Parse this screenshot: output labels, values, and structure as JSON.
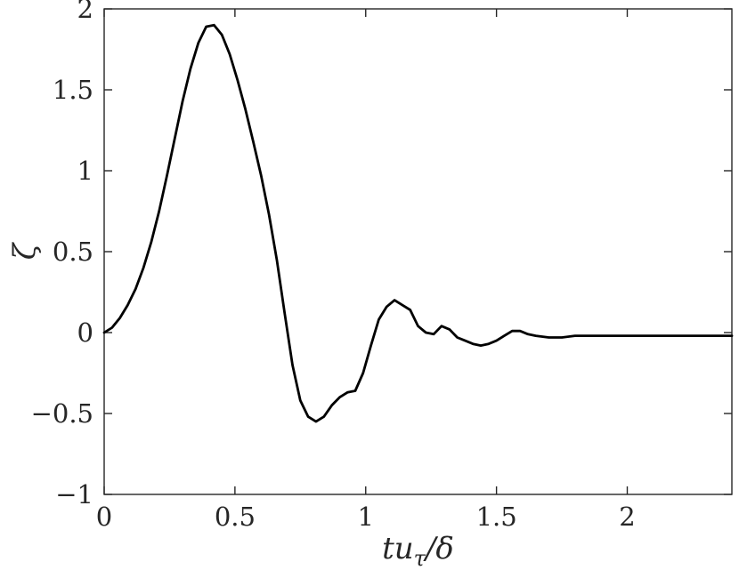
{
  "figure": {
    "background": "#ffffff"
  },
  "chart_data": {
    "type": "line",
    "title": "",
    "xlabel": "tu_τ/δ",
    "xlabel_parts": {
      "pre": "tu",
      "sub": "τ",
      "post": "/δ"
    },
    "ylabel": "ζ",
    "xlim": [
      0,
      2.4
    ],
    "ylim": [
      -1,
      2
    ],
    "xticks": [
      0,
      0.5,
      1,
      1.5,
      2
    ],
    "xtick_labels": [
      "0",
      "0.5",
      "1",
      "1.5",
      "2"
    ],
    "yticks": [
      -1,
      -0.5,
      0,
      0.5,
      1,
      1.5,
      2
    ],
    "ytick_labels": [
      "−1",
      "−0.5",
      "0",
      "0.5",
      "1",
      "1.5",
      "2"
    ],
    "grid": false,
    "legend_position": "none",
    "axis_color": "#262626",
    "line_color": "#000000",
    "line_width": 2.8,
    "series": [
      {
        "name": "ζ",
        "x": [
          0.0,
          0.03,
          0.06,
          0.09,
          0.12,
          0.15,
          0.18,
          0.21,
          0.24,
          0.27,
          0.3,
          0.33,
          0.36,
          0.39,
          0.42,
          0.45,
          0.48,
          0.51,
          0.54,
          0.57,
          0.6,
          0.63,
          0.66,
          0.69,
          0.72,
          0.75,
          0.78,
          0.81,
          0.84,
          0.87,
          0.9,
          0.93,
          0.96,
          0.99,
          1.02,
          1.05,
          1.08,
          1.11,
          1.14,
          1.17,
          1.2,
          1.23,
          1.26,
          1.29,
          1.32,
          1.35,
          1.38,
          1.41,
          1.44,
          1.47,
          1.5,
          1.53,
          1.56,
          1.59,
          1.62,
          1.65,
          1.7,
          1.75,
          1.8,
          1.9,
          2.0,
          2.1,
          2.2,
          2.3,
          2.4
        ],
        "y": [
          0.0,
          0.03,
          0.09,
          0.17,
          0.27,
          0.4,
          0.56,
          0.75,
          0.97,
          1.2,
          1.43,
          1.63,
          1.79,
          1.89,
          1.9,
          1.84,
          1.72,
          1.56,
          1.38,
          1.18,
          0.97,
          0.73,
          0.45,
          0.12,
          -0.2,
          -0.42,
          -0.52,
          -0.55,
          -0.52,
          -0.45,
          -0.4,
          -0.37,
          -0.36,
          -0.25,
          -0.08,
          0.08,
          0.16,
          0.2,
          0.17,
          0.14,
          0.04,
          0.0,
          -0.01,
          0.04,
          0.02,
          -0.03,
          -0.05,
          -0.07,
          -0.08,
          -0.07,
          -0.05,
          -0.02,
          0.01,
          0.01,
          -0.01,
          -0.02,
          -0.03,
          -0.03,
          -0.02,
          -0.02,
          -0.02,
          -0.02,
          -0.02,
          -0.02,
          -0.02
        ]
      }
    ]
  }
}
